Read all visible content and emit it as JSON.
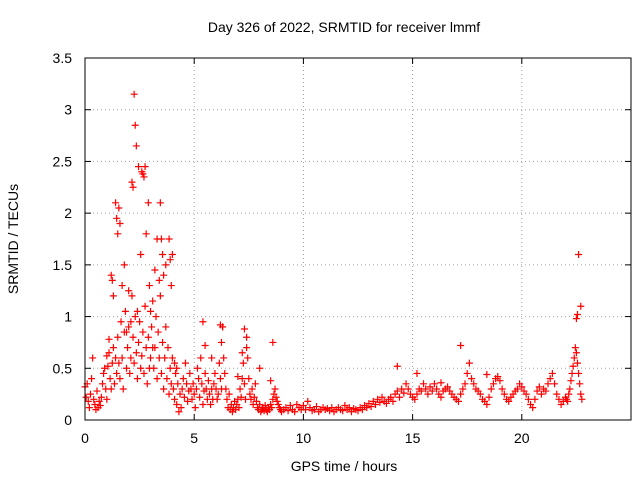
{
  "chart_data": {
    "type": "scatter",
    "title": "Day 326 of 2022, SRMTID for receiver lmmf",
    "xlabel": "GPS time / hours",
    "ylabel": "SRMTID / TECUs",
    "xlim": [
      0,
      25
    ],
    "ylim": [
      0,
      3.5
    ],
    "xticks": [
      0,
      5,
      10,
      15,
      20
    ],
    "xtick_labels": [
      "0",
      "5",
      "10",
      "15",
      "20"
    ],
    "yticks": [
      0,
      0.5,
      1,
      1.5,
      2,
      2.5,
      3,
      3.5
    ],
    "ytick_labels": [
      "0",
      "0.5",
      "1",
      "1.5",
      "2",
      "2.5",
      "3",
      "3.5"
    ],
    "grid": true,
    "marker": "+",
    "color": "#ff0000",
    "series": [
      {
        "name": "SRMTID",
        "x": [
          0.0,
          0.05,
          0.1,
          0.15,
          0.2,
          0.25,
          0.3,
          0.35,
          0.4,
          0.45,
          0.5,
          0.55,
          0.6,
          0.65,
          0.7,
          0.75,
          0.8,
          0.85,
          0.9,
          0.95,
          1.0,
          1.05,
          1.1,
          1.15,
          1.2,
          1.25,
          1.3,
          1.35,
          1.4,
          1.45,
          1.5,
          1.55,
          1.6,
          1.65,
          1.7,
          1.75,
          1.8,
          1.85,
          1.9,
          1.95,
          2.0,
          2.05,
          2.1,
          2.15,
          2.2,
          2.25,
          2.3,
          2.35,
          2.4,
          2.45,
          2.5,
          2.55,
          2.6,
          2.65,
          2.7,
          2.75,
          2.8,
          2.85,
          2.9,
          2.95,
          3.0,
          3.05,
          3.1,
          3.15,
          3.2,
          3.25,
          3.3,
          3.35,
          3.4,
          3.45,
          3.5,
          3.55,
          3.6,
          3.65,
          3.7,
          3.75,
          3.8,
          3.85,
          3.9,
          3.95,
          4.0,
          4.05,
          4.1,
          4.15,
          4.2,
          4.25,
          4.3,
          4.35,
          4.4,
          4.45,
          4.5,
          4.55,
          4.6,
          4.65,
          4.7,
          4.75,
          4.8,
          4.85,
          4.9,
          4.95,
          5.0,
          5.05,
          5.1,
          5.15,
          5.2,
          5.25,
          5.3,
          5.35,
          5.4,
          5.45,
          5.5,
          5.55,
          5.6,
          5.65,
          5.7,
          5.75,
          5.8,
          5.85,
          5.9,
          5.95,
          6.0,
          6.05,
          6.1,
          6.15,
          6.2,
          6.25,
          6.3,
          6.35,
          6.4,
          6.45,
          6.5,
          6.55,
          6.6,
          6.65,
          6.7,
          6.75,
          6.8,
          6.85,
          6.9,
          6.95,
          7.0,
          7.05,
          7.1,
          7.15,
          7.2,
          7.25,
          7.3,
          7.35,
          7.4,
          7.45,
          7.5,
          7.55,
          7.6,
          7.65,
          7.7,
          7.75,
          7.8,
          7.85,
          7.9,
          7.95,
          8.0,
          8.05,
          8.1,
          8.15,
          8.2,
          8.25,
          8.3,
          8.35,
          8.4,
          8.45,
          8.5,
          8.55,
          8.6,
          8.65,
          8.7,
          8.75,
          8.8,
          8.85,
          8.9,
          8.95,
          9.0,
          9.1,
          9.2,
          9.3,
          9.4,
          9.5,
          9.6,
          9.7,
          9.8,
          9.9,
          10.0,
          10.1,
          10.2,
          10.3,
          10.4,
          10.5,
          10.6,
          10.7,
          10.8,
          10.9,
          11.0,
          11.1,
          11.2,
          11.3,
          11.4,
          11.5,
          11.6,
          11.7,
          11.8,
          11.9,
          12.0,
          12.1,
          12.2,
          12.3,
          12.4,
          12.5,
          12.6,
          12.7,
          12.8,
          12.9,
          13.0,
          13.1,
          13.2,
          13.3,
          13.4,
          13.5,
          13.6,
          13.7,
          13.8,
          13.9,
          14.0,
          14.1,
          14.2,
          14.3,
          14.4,
          14.5,
          14.6,
          14.7,
          14.8,
          14.9,
          15.0,
          15.1,
          15.2,
          15.3,
          15.4,
          15.5,
          15.6,
          15.7,
          15.8,
          15.9,
          16.0,
          16.1,
          16.2,
          16.3,
          16.4,
          16.5,
          16.6,
          16.7,
          16.8,
          16.9,
          17.0,
          17.1,
          17.2,
          17.3,
          17.4,
          17.5,
          17.6,
          17.7,
          17.8,
          17.9,
          18.0,
          18.1,
          18.2,
          18.3,
          18.4,
          18.5,
          18.6,
          18.7,
          18.8,
          18.9,
          19.0,
          19.1,
          19.2,
          19.3,
          19.4,
          19.5,
          19.6,
          19.7,
          19.8,
          19.9,
          20.0,
          20.1,
          20.2,
          20.3,
          20.4,
          20.5,
          20.6,
          20.7,
          20.8,
          20.9,
          21.0,
          21.1,
          21.2,
          21.3,
          21.4,
          21.5,
          21.6,
          21.7,
          21.8,
          21.9,
          22.0,
          22.05,
          22.1,
          22.15,
          22.2,
          22.25,
          22.3,
          22.35,
          22.4,
          22.45,
          22.5,
          22.55,
          22.6,
          22.65,
          22.7,
          22.75,
          1.4,
          1.45,
          1.5,
          1.55,
          1.6,
          2.15,
          2.2,
          2.25,
          2.3,
          2.35,
          2.6,
          2.65,
          2.7,
          2.75,
          2.8,
          2.9,
          3.45,
          3.5,
          3.55,
          3.85,
          3.9,
          1.2,
          1.25,
          1.3,
          1.7,
          1.8,
          2.0,
          2.45,
          2.55,
          3.0,
          3.2,
          3.3,
          3.6,
          3.7,
          3.95,
          4.0,
          5.4,
          6.2,
          6.3,
          7.3,
          8.6,
          14.3,
          17.2,
          22.5,
          22.55,
          22.6,
          22.7,
          1.0,
          1.1,
          1.9,
          2.1,
          2.4,
          2.95,
          3.1,
          3.4,
          4.1,
          4.2,
          5.5,
          5.8,
          6.25,
          7.0,
          7.2,
          7.4,
          8.0,
          8.5,
          15.2,
          16.3,
          18.4
        ],
        "y": [
          0.32,
          0.22,
          0.35,
          0.18,
          0.12,
          0.25,
          0.4,
          0.6,
          0.2,
          0.15,
          0.1,
          0.28,
          0.12,
          0.18,
          0.14,
          0.22,
          0.35,
          0.45,
          0.5,
          0.3,
          0.2,
          0.52,
          0.65,
          0.4,
          0.3,
          0.55,
          0.7,
          0.35,
          0.6,
          0.45,
          0.8,
          0.55,
          0.4,
          0.95,
          0.6,
          0.3,
          0.85,
          1.05,
          0.5,
          0.7,
          0.9,
          0.45,
          0.6,
          1.2,
          0.8,
          0.55,
          1.0,
          0.65,
          0.4,
          0.75,
          0.95,
          0.5,
          0.62,
          0.85,
          0.45,
          1.1,
          0.7,
          0.35,
          0.8,
          1.3,
          0.6,
          0.9,
          1.15,
          0.5,
          0.7,
          1.0,
          0.4,
          0.85,
          0.6,
          1.2,
          0.45,
          0.75,
          0.3,
          0.6,
          0.9,
          0.4,
          0.7,
          0.25,
          0.5,
          0.35,
          0.6,
          0.3,
          0.2,
          0.45,
          0.15,
          0.35,
          0.08,
          0.25,
          0.12,
          0.3,
          0.4,
          0.22,
          0.55,
          0.35,
          0.18,
          0.28,
          0.45,
          0.3,
          0.2,
          0.35,
          0.25,
          0.12,
          0.3,
          0.5,
          0.4,
          0.22,
          0.6,
          0.35,
          0.15,
          0.28,
          0.45,
          0.3,
          0.2,
          0.38,
          0.25,
          0.15,
          0.3,
          0.2,
          0.35,
          0.45,
          0.3,
          0.2,
          0.25,
          0.55,
          0.4,
          0.3,
          0.9,
          0.6,
          0.45,
          0.3,
          0.2,
          0.12,
          0.25,
          0.1,
          0.15,
          0.08,
          0.12,
          0.18,
          0.1,
          0.15,
          0.2,
          0.12,
          0.3,
          0.22,
          0.4,
          0.55,
          0.35,
          0.2,
          0.8,
          0.6,
          0.4,
          0.25,
          0.2,
          0.3,
          0.15,
          0.22,
          0.35,
          0.18,
          0.12,
          0.1,
          0.15,
          0.08,
          0.1,
          0.12,
          0.09,
          0.14,
          0.1,
          0.08,
          0.12,
          0.1,
          0.15,
          0.12,
          0.2,
          0.25,
          0.3,
          0.22,
          0.18,
          0.15,
          0.12,
          0.1,
          0.08,
          0.1,
          0.12,
          0.09,
          0.14,
          0.1,
          0.08,
          0.15,
          0.12,
          0.1,
          0.14,
          0.1,
          0.18,
          0.12,
          0.09,
          0.1,
          0.13,
          0.08,
          0.1,
          0.12,
          0.1,
          0.11,
          0.09,
          0.12,
          0.08,
          0.1,
          0.12,
          0.1,
          0.09,
          0.14,
          0.1,
          0.12,
          0.08,
          0.11,
          0.1,
          0.09,
          0.12,
          0.1,
          0.14,
          0.12,
          0.16,
          0.13,
          0.18,
          0.15,
          0.2,
          0.17,
          0.22,
          0.18,
          0.16,
          0.2,
          0.22,
          0.18,
          0.25,
          0.28,
          0.22,
          0.3,
          0.26,
          0.35,
          0.3,
          0.25,
          0.22,
          0.2,
          0.25,
          0.3,
          0.28,
          0.35,
          0.3,
          0.25,
          0.32,
          0.28,
          0.35,
          0.3,
          0.25,
          0.22,
          0.28,
          0.3,
          0.32,
          0.28,
          0.25,
          0.22,
          0.2,
          0.18,
          0.25,
          0.3,
          0.35,
          0.45,
          0.55,
          0.4,
          0.35,
          0.3,
          0.28,
          0.25,
          0.2,
          0.18,
          0.15,
          0.22,
          0.3,
          0.35,
          0.4,
          0.42,
          0.38,
          0.3,
          0.25,
          0.2,
          0.18,
          0.22,
          0.25,
          0.28,
          0.3,
          0.35,
          0.32,
          0.28,
          0.25,
          0.2,
          0.15,
          0.12,
          0.2,
          0.28,
          0.32,
          0.25,
          0.3,
          0.28,
          0.35,
          0.4,
          0.45,
          0.35,
          0.25,
          0.2,
          0.15,
          0.18,
          0.22,
          0.2,
          0.18,
          0.25,
          0.3,
          0.38,
          0.45,
          0.52,
          0.6,
          0.7,
          0.65,
          0.55,
          0.45,
          0.35,
          0.25,
          0.2,
          2.1,
          1.95,
          1.8,
          2.05,
          1.9,
          2.3,
          2.25,
          3.15,
          2.85,
          2.65,
          2.4,
          2.38,
          2.35,
          2.45,
          1.8,
          2.1,
          2.1,
          1.75,
          1.6,
          1.75,
          1.55,
          1.4,
          1.35,
          1.2,
          1.3,
          1.5,
          1.25,
          2.45,
          1.6,
          1.05,
          1.45,
          1.75,
          1.4,
          1.5,
          1.3,
          1.6,
          0.95,
          0.92,
          0.9,
          0.88,
          0.75,
          0.52,
          0.72,
          0.98,
          1.02,
          1.6,
          1.1,
          0.62,
          0.78,
          0.85,
          0.95,
          1.05,
          0.5,
          0.7,
          1.35,
          0.55,
          0.5,
          0.72,
          0.6,
          0.75,
          0.42,
          0.65,
          0.7,
          0.5,
          0.38,
          0.45,
          0.36,
          0.44
        ]
      }
    ]
  }
}
